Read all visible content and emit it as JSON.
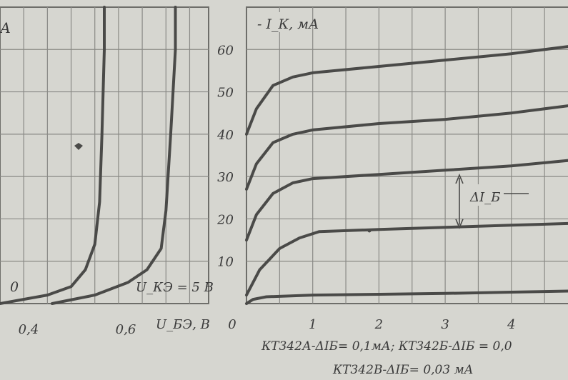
{
  "chart_data": [
    {
      "type": "line",
      "title": "",
      "xlabel": "U_БЭ, В",
      "ylabel": "А",
      "x_ticks": [
        "0,4",
        "0,6"
      ],
      "xlim": [
        0.3,
        0.74
      ],
      "ylim": [
        0,
        70
      ],
      "grid": true,
      "annotations": [
        "0",
        "U_КЭ = 5 В"
      ],
      "series": [
        {
          "name": "0",
          "x": [
            0.3,
            0.4,
            0.45,
            0.48,
            0.5,
            0.51,
            0.515,
            0.52,
            0.52
          ],
          "y": [
            0,
            2,
            4,
            8,
            14,
            24,
            40,
            60,
            70
          ]
        },
        {
          "name": "U_КЭ = 5 В",
          "x": [
            0.41,
            0.5,
            0.57,
            0.61,
            0.64,
            0.65,
            0.66,
            0.67,
            0.67
          ],
          "y": [
            0,
            2,
            5,
            8,
            13,
            22,
            40,
            60,
            70
          ]
        }
      ]
    },
    {
      "type": "line",
      "title": "",
      "xlabel": "",
      "ylabel": "I_К, мА",
      "x_ticks": [
        "0",
        "1",
        "2",
        "3",
        "4"
      ],
      "y_ticks": [
        "10",
        "20",
        "30",
        "40",
        "50",
        "60"
      ],
      "xlim": [
        0,
        5
      ],
      "ylim": [
        0,
        70
      ],
      "grid": true,
      "annotations": [
        "ΔI_Б"
      ],
      "series": [
        {
          "name": "",
          "x": [
            0,
            0.15,
            0.4,
            0.7,
            1.0,
            2,
            3,
            4,
            5
          ],
          "y": [
            40,
            46,
            51.5,
            53.5,
            54.5,
            56,
            57.5,
            59,
            61
          ]
        },
        {
          "name": "",
          "x": [
            0,
            0.15,
            0.4,
            0.7,
            1.0,
            2,
            3,
            4,
            5
          ],
          "y": [
            27,
            33,
            38,
            40,
            41,
            42.5,
            43.5,
            45,
            47
          ]
        },
        {
          "name": "",
          "x": [
            0,
            0.15,
            0.4,
            0.7,
            1.0,
            2,
            3,
            4,
            5
          ],
          "y": [
            15,
            21,
            26,
            28.5,
            29.5,
            30.5,
            31.5,
            32.5,
            34
          ]
        },
        {
          "name": "",
          "x": [
            0,
            0.2,
            0.5,
            0.8,
            1.1,
            2,
            3,
            4,
            5
          ],
          "y": [
            2,
            8,
            13,
            15.5,
            17,
            17.5,
            18,
            18.5,
            19
          ]
        },
        {
          "name": "",
          "x": [
            0,
            0.1,
            0.3,
            1,
            2,
            3,
            4,
            5
          ],
          "y": [
            0,
            1,
            1.6,
            2,
            2.2,
            2.4,
            2.7,
            3
          ]
        }
      ]
    }
  ],
  "caption": {
    "line1": "КТ342А-ΔIБ= 0,1мА; КТ342Б-ΔIБ = 0,0",
    "line2": "КТ342В-ΔIБ= 0,03 мА"
  },
  "colors": {
    "background": "#d6d6d0",
    "ink": "#4a4a48",
    "grid": "#8a8a86"
  }
}
